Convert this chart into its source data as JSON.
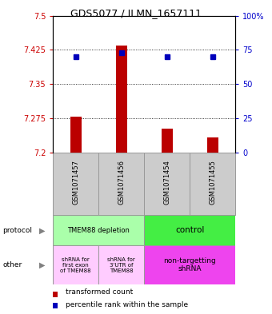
{
  "title": "GDS5077 / ILMN_1657111",
  "samples": [
    "GSM1071457",
    "GSM1071456",
    "GSM1071454",
    "GSM1071455"
  ],
  "bar_values": [
    7.278,
    7.435,
    7.252,
    7.233
  ],
  "bar_bottom": 7.2,
  "percentile_values": [
    70,
    73,
    70,
    70
  ],
  "ylim_left": [
    7.2,
    7.5
  ],
  "ylim_right": [
    0,
    100
  ],
  "yticks_left": [
    7.2,
    7.275,
    7.35,
    7.425,
    7.5
  ],
  "yticks_right": [
    0,
    25,
    50,
    75,
    100
  ],
  "ytick_labels_left": [
    "7.2",
    "7.275",
    "7.35",
    "7.425",
    "7.5"
  ],
  "ytick_labels_right": [
    "0",
    "25",
    "50",
    "75",
    "100%"
  ],
  "bar_color": "#bb0000",
  "dot_color": "#0000bb",
  "legend_red": "transformed count",
  "legend_blue": "percentile rank within the sample",
  "label_protocol": "protocol",
  "label_other": "other"
}
